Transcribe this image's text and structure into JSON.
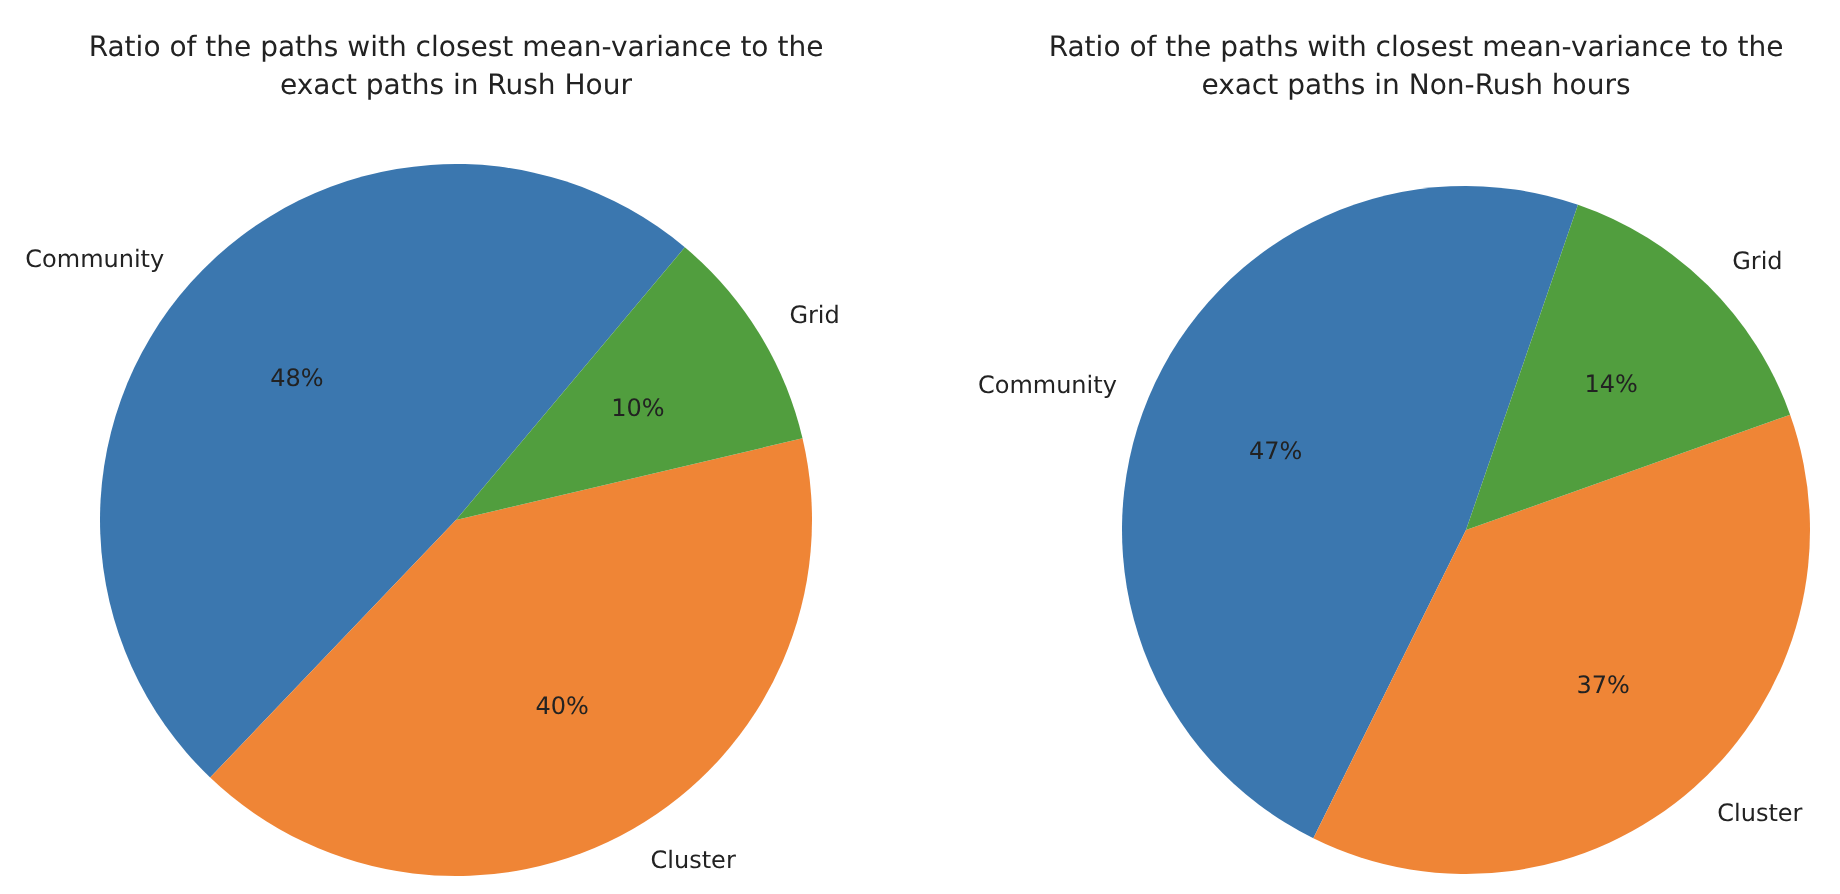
{
  "chart_data": [
    {
      "type": "pie",
      "title": "Ratio of the paths with closest mean-variance to the\nexact paths in Rush Hour",
      "categories": [
        "Community",
        "Cluster",
        "Grid"
      ],
      "values": [
        48,
        40,
        10
      ],
      "value_labels": [
        "48%",
        "40%",
        "10%"
      ],
      "colors": [
        "#3b77af",
        "#ef8536",
        "#519e3e"
      ]
    },
    {
      "type": "pie",
      "title": "Ratio of the paths with closest mean-variance to the\nexact paths in Non-Rush hours",
      "categories": [
        "Community",
        "Cluster",
        "Grid"
      ],
      "values": [
        47,
        37,
        14
      ],
      "value_labels": [
        "47%",
        "37%",
        "14%"
      ],
      "colors": [
        "#3b77af",
        "#ef8536",
        "#519e3e"
      ]
    }
  ]
}
